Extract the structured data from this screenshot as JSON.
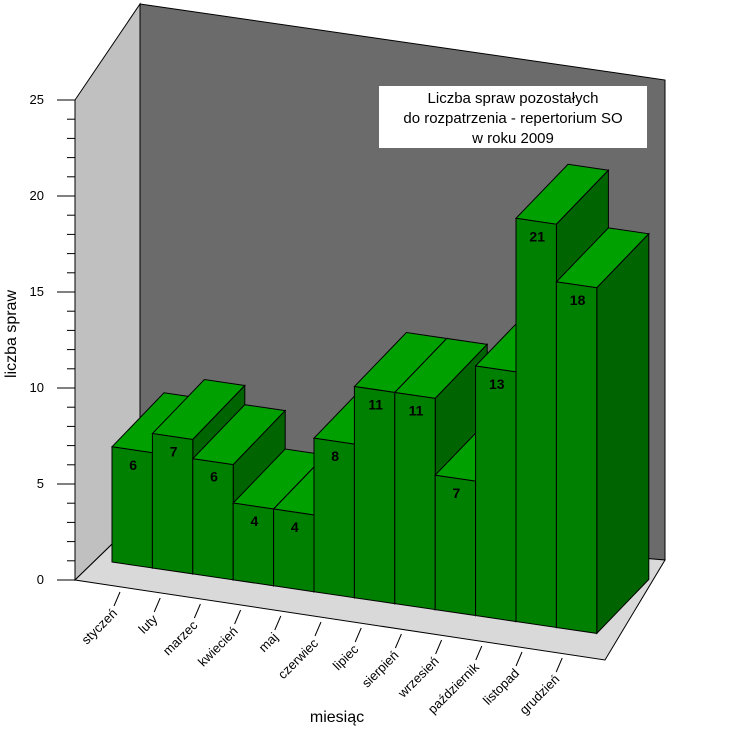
{
  "chart_data": {
    "type": "bar",
    "title_lines": [
      "Liczba spraw pozostałych",
      "do rozpatrzenia - repertorium SO",
      "w roku 2009"
    ],
    "xlabel": "miesiąc",
    "ylabel": "liczba spraw",
    "ylim": [
      0,
      25
    ],
    "y_ticks": [
      "0",
      "5",
      "10",
      "15",
      "20",
      "25"
    ],
    "categories": [
      "styczeń",
      "luty",
      "marzec",
      "kwiecień",
      "maj",
      "czerwiec",
      "lipiec",
      "sierpień",
      "wrzesień",
      "październik",
      "listopad",
      "grudzień"
    ],
    "values": [
      6,
      7,
      6,
      4,
      4,
      8,
      11,
      11,
      7,
      13,
      21,
      18
    ],
    "colors": {
      "bar_front": "#008000",
      "bar_top": "#00a000",
      "bar_side": "#006400",
      "back_wall": "#6b6b6b",
      "side_wall": "#c0c0c0",
      "floor": "#d9d9d9"
    },
    "grid": false,
    "chart_style": "3d-bar"
  }
}
